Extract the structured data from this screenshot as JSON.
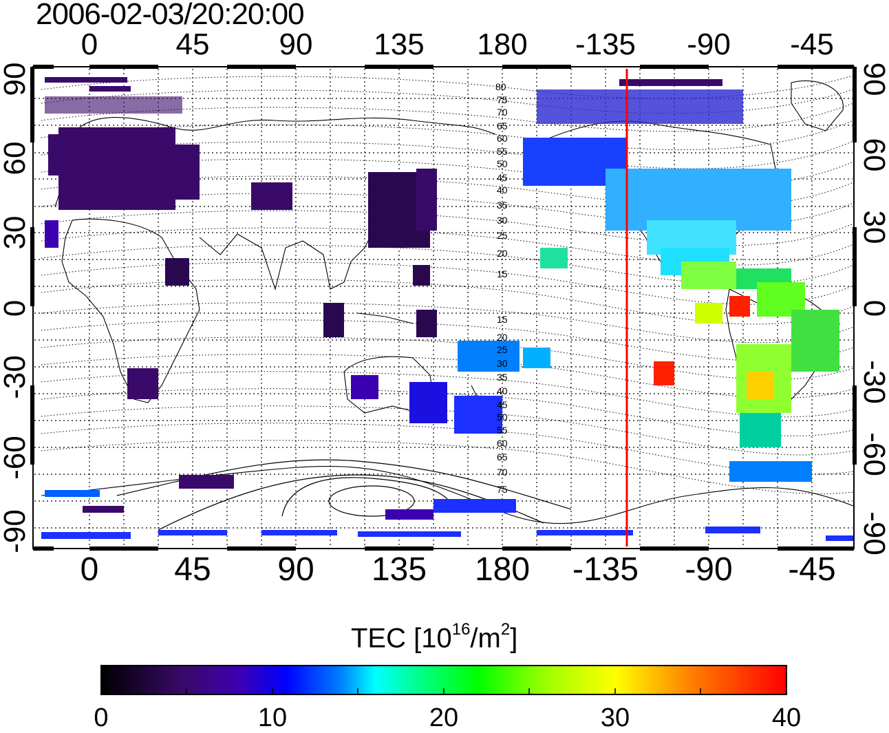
{
  "title": "2006-02-03/20:20:00",
  "map": {
    "top_lon_labels": [
      "0",
      "45",
      "90",
      "135",
      "180",
      "-135",
      "-90",
      "-45"
    ],
    "bottom_lon_labels": [
      "0",
      "45",
      "90",
      "135",
      "180",
      "-135",
      "-90",
      "-45"
    ],
    "lat_labels": [
      "90",
      "60",
      "30",
      "0",
      "-30",
      "-60",
      "-90"
    ],
    "terminator_longitude": -130,
    "terminator_color": "#ff0000",
    "contour_labels": [
      "80",
      "75",
      "70",
      "65",
      "60",
      "55",
      "50",
      "45",
      "40",
      "35",
      "30",
      "25",
      "20",
      "15",
      "15",
      "20",
      "25",
      "30",
      "35",
      "40",
      "45",
      "50",
      "55",
      "60",
      "65",
      "70",
      "75"
    ]
  },
  "colorbar": {
    "title_base": "TEC  [10",
    "title_exp": "16",
    "title_mid": "/m",
    "title_exp2": "2",
    "title_end": "]",
    "min": 0,
    "max": 40,
    "ticks": [
      "0",
      "10",
      "20",
      "30",
      "40"
    ],
    "colormap": [
      "#000000",
      "#3a0a6a",
      "#3c00b0",
      "#0000ff",
      "#0080ff",
      "#00ffff",
      "#00ff80",
      "#00ff00",
      "#a0ff00",
      "#ffff00",
      "#ff8000",
      "#ff0000"
    ]
  }
}
